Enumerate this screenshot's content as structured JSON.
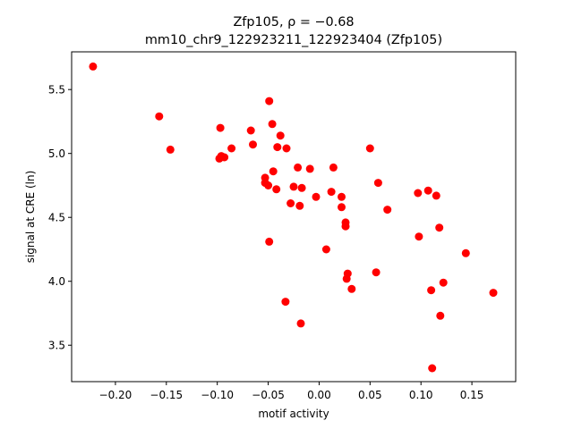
{
  "chart_data": {
    "type": "scatter",
    "title_line1": "Zfp105, ρ = −0.68",
    "title_line2": "mm10_chr9_122923211_122923404 (Zfp105)",
    "xlabel": "motif activity",
    "ylabel": "signal at CRE (ln)",
    "xlim": [
      -0.243,
      0.193
    ],
    "ylim": [
      3.215,
      5.795
    ],
    "xticks": [
      -0.2,
      -0.15,
      -0.1,
      -0.05,
      0.0,
      0.05,
      0.1,
      0.15
    ],
    "xtick_labels": [
      "−0.20",
      "−0.15",
      "−0.10",
      "−0.05",
      "0.00",
      "0.05",
      "0.10",
      "0.15"
    ],
    "yticks": [
      3.5,
      4.0,
      4.5,
      5.0,
      5.5
    ],
    "ytick_labels": [
      "3.5",
      "4.0",
      "4.5",
      "5.0",
      "5.5"
    ],
    "grid": false,
    "marker_color": "#ff0000",
    "points": [
      {
        "x": -0.222,
        "y": 5.68
      },
      {
        "x": -0.157,
        "y": 5.29
      },
      {
        "x": -0.146,
        "y": 5.03
      },
      {
        "x": -0.097,
        "y": 5.2
      },
      {
        "x": -0.098,
        "y": 4.96
      },
      {
        "x": -0.096,
        "y": 4.98
      },
      {
        "x": -0.093,
        "y": 4.97
      },
      {
        "x": -0.086,
        "y": 5.04
      },
      {
        "x": -0.067,
        "y": 5.18
      },
      {
        "x": -0.065,
        "y": 5.07
      },
      {
        "x": -0.053,
        "y": 4.81
      },
      {
        "x": -0.053,
        "y": 4.77
      },
      {
        "x": -0.05,
        "y": 4.75
      },
      {
        "x": -0.049,
        "y": 5.41
      },
      {
        "x": -0.049,
        "y": 4.31
      },
      {
        "x": -0.046,
        "y": 5.23
      },
      {
        "x": -0.045,
        "y": 4.86
      },
      {
        "x": -0.042,
        "y": 4.72
      },
      {
        "x": -0.041,
        "y": 5.05
      },
      {
        "x": -0.038,
        "y": 5.14
      },
      {
        "x": -0.033,
        "y": 3.84
      },
      {
        "x": -0.032,
        "y": 5.04
      },
      {
        "x": -0.028,
        "y": 4.61
      },
      {
        "x": -0.025,
        "y": 4.74
      },
      {
        "x": -0.021,
        "y": 4.89
      },
      {
        "x": -0.019,
        "y": 4.59
      },
      {
        "x": -0.017,
        "y": 4.73
      },
      {
        "x": -0.018,
        "y": 3.67
      },
      {
        "x": -0.009,
        "y": 4.88
      },
      {
        "x": -0.003,
        "y": 4.66
      },
      {
        "x": 0.007,
        "y": 4.25
      },
      {
        "x": 0.012,
        "y": 4.7
      },
      {
        "x": 0.014,
        "y": 4.89
      },
      {
        "x": 0.022,
        "y": 4.66
      },
      {
        "x": 0.022,
        "y": 4.58
      },
      {
        "x": 0.026,
        "y": 4.46
      },
      {
        "x": 0.026,
        "y": 4.43
      },
      {
        "x": 0.028,
        "y": 4.06
      },
      {
        "x": 0.027,
        "y": 4.02
      },
      {
        "x": 0.032,
        "y": 3.94
      },
      {
        "x": 0.05,
        "y": 5.04
      },
      {
        "x": 0.056,
        "y": 4.07
      },
      {
        "x": 0.058,
        "y": 4.77
      },
      {
        "x": 0.067,
        "y": 4.56
      },
      {
        "x": 0.097,
        "y": 4.69
      },
      {
        "x": 0.098,
        "y": 4.35
      },
      {
        "x": 0.107,
        "y": 4.71
      },
      {
        "x": 0.11,
        "y": 3.93
      },
      {
        "x": 0.111,
        "y": 3.32
      },
      {
        "x": 0.115,
        "y": 4.67
      },
      {
        "x": 0.118,
        "y": 4.42
      },
      {
        "x": 0.119,
        "y": 3.73
      },
      {
        "x": 0.122,
        "y": 3.99
      },
      {
        "x": 0.144,
        "y": 4.22
      },
      {
        "x": 0.171,
        "y": 3.91
      }
    ]
  }
}
